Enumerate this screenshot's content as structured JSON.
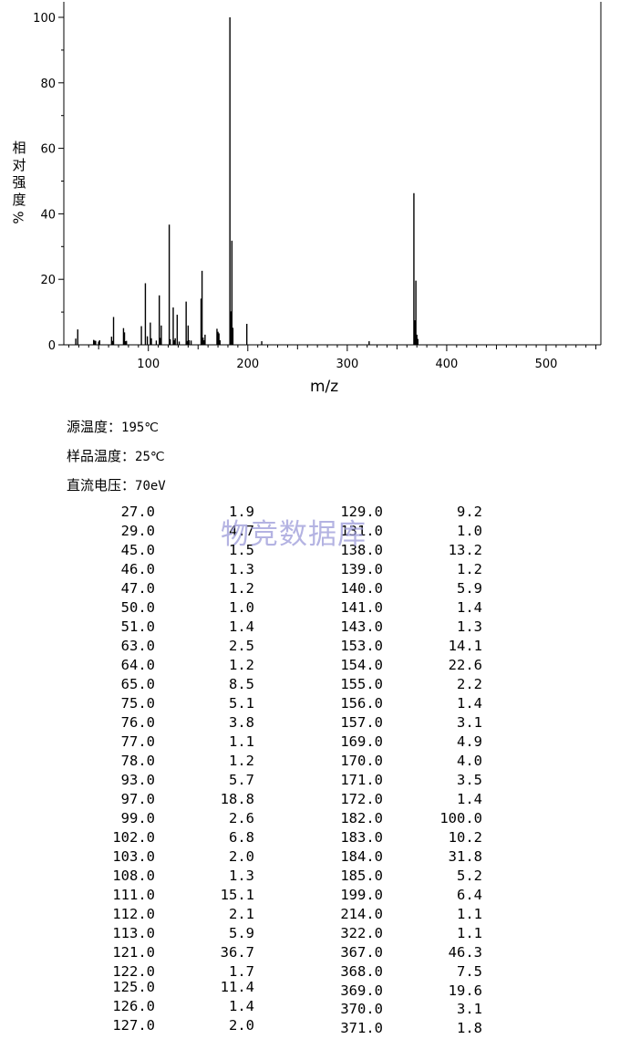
{
  "chart_data": {
    "type": "bar",
    "xlabel": "m/z",
    "ylabel_chars": [
      "相",
      "对",
      "强",
      "度"
    ],
    "ylabel_unit": "%",
    "xlim": [
      15,
      555
    ],
    "ylim": [
      0,
      100
    ],
    "xticks": [
      100,
      200,
      300,
      400,
      500
    ],
    "yticks": [
      0,
      20,
      40,
      60,
      80,
      100
    ],
    "peaks": [
      [
        27.0,
        1.9
      ],
      [
        29.0,
        4.7
      ],
      [
        45.0,
        1.5
      ],
      [
        46.0,
        1.3
      ],
      [
        47.0,
        1.2
      ],
      [
        50.0,
        1.0
      ],
      [
        51.0,
        1.4
      ],
      [
        63.0,
        2.5
      ],
      [
        64.0,
        1.2
      ],
      [
        65.0,
        8.5
      ],
      [
        75.0,
        5.1
      ],
      [
        76.0,
        3.8
      ],
      [
        77.0,
        1.1
      ],
      [
        78.0,
        1.2
      ],
      [
        93.0,
        5.7
      ],
      [
        97.0,
        18.8
      ],
      [
        99.0,
        2.6
      ],
      [
        102.0,
        6.8
      ],
      [
        103.0,
        2.0
      ],
      [
        108.0,
        1.3
      ],
      [
        111.0,
        15.1
      ],
      [
        112.0,
        2.1
      ],
      [
        113.0,
        5.9
      ],
      [
        121.0,
        36.7
      ],
      [
        122.0,
        1.7
      ],
      [
        125.0,
        11.4
      ],
      [
        126.0,
        1.4
      ],
      [
        127.0,
        2.0
      ],
      [
        129.0,
        9.2
      ],
      [
        131.0,
        1.0
      ],
      [
        138.0,
        13.2
      ],
      [
        139.0,
        1.2
      ],
      [
        140.0,
        5.9
      ],
      [
        141.0,
        1.4
      ],
      [
        143.0,
        1.3
      ],
      [
        153.0,
        14.1
      ],
      [
        154.0,
        22.6
      ],
      [
        155.0,
        2.2
      ],
      [
        156.0,
        1.4
      ],
      [
        157.0,
        3.1
      ],
      [
        169.0,
        4.9
      ],
      [
        170.0,
        4.0
      ],
      [
        171.0,
        3.5
      ],
      [
        172.0,
        1.4
      ],
      [
        182.0,
        100.0
      ],
      [
        183.0,
        10.2
      ],
      [
        184.0,
        31.8
      ],
      [
        185.0,
        5.2
      ],
      [
        199.0,
        6.4
      ],
      [
        214.0,
        1.1
      ],
      [
        322.0,
        1.1
      ],
      [
        367.0,
        46.3
      ],
      [
        368.0,
        7.5
      ],
      [
        369.0,
        19.6
      ],
      [
        370.0,
        3.1
      ],
      [
        371.0,
        1.8
      ]
    ]
  },
  "conditions": [
    {
      "label": "源温度：",
      "value": "195℃"
    },
    {
      "label": "样品温度：",
      "value": "25℃"
    },
    {
      "label": "直流电压：",
      "value": "70eV"
    }
  ],
  "watermark": "物竞数据库",
  "table": {
    "left": [
      [
        "27.0",
        "1.9"
      ],
      [
        "29.0",
        "4.7"
      ],
      [
        "45.0",
        "1.5"
      ],
      [
        "46.0",
        "1.3"
      ],
      [
        "47.0",
        "1.2"
      ],
      [
        "50.0",
        "1.0"
      ],
      [
        "51.0",
        "1.4"
      ],
      [
        "63.0",
        "2.5"
      ],
      [
        "64.0",
        "1.2"
      ],
      [
        "65.0",
        "8.5"
      ],
      [
        "75.0",
        "5.1"
      ],
      [
        "76.0",
        "3.8"
      ],
      [
        "77.0",
        "1.1"
      ],
      [
        "78.0",
        "1.2"
      ],
      [
        "93.0",
        "5.7"
      ],
      [
        "97.0",
        "18.8"
      ],
      [
        "99.0",
        "2.6"
      ],
      [
        "102.0",
        "6.8"
      ],
      [
        "103.0",
        "2.0"
      ],
      [
        "108.0",
        "1.3"
      ],
      [
        "111.0",
        "15.1"
      ],
      [
        "112.0",
        "2.1"
      ],
      [
        "113.0",
        "5.9"
      ],
      [
        "121.0",
        "36.7"
      ],
      [
        "122.0",
        "1.7"
      ],
      [
        "125.0",
        "11.4"
      ],
      [
        "126.0",
        "1.4"
      ],
      [
        "127.0",
        "2.0"
      ]
    ],
    "right": [
      [
        "129.0",
        "9.2"
      ],
      [
        "131.0",
        "1.0"
      ],
      [
        "138.0",
        "13.2"
      ],
      [
        "139.0",
        "1.2"
      ],
      [
        "140.0",
        "5.9"
      ],
      [
        "141.0",
        "1.4"
      ],
      [
        "143.0",
        "1.3"
      ],
      [
        "153.0",
        "14.1"
      ],
      [
        "154.0",
        "22.6"
      ],
      [
        "155.0",
        "2.2"
      ],
      [
        "156.0",
        "1.4"
      ],
      [
        "157.0",
        "3.1"
      ],
      [
        "169.0",
        "4.9"
      ],
      [
        "170.0",
        "4.0"
      ],
      [
        "171.0",
        "3.5"
      ],
      [
        "172.0",
        "1.4"
      ],
      [
        "182.0",
        "100.0"
      ],
      [
        "183.0",
        "10.2"
      ],
      [
        "184.0",
        "31.8"
      ],
      [
        "185.0",
        "5.2"
      ],
      [
        "199.0",
        "6.4"
      ],
      [
        "214.0",
        "1.1"
      ],
      [
        "322.0",
        "1.1"
      ],
      [
        "367.0",
        "46.3"
      ],
      [
        "368.0",
        "7.5"
      ],
      [
        "369.0",
        "19.6"
      ],
      [
        "370.0",
        "3.1"
      ],
      [
        "371.0",
        "1.8"
      ]
    ]
  }
}
